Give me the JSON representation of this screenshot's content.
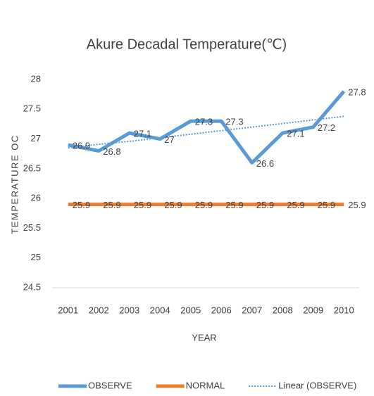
{
  "chart_data": {
    "type": "line",
    "title": "Akure Decadal Temperature(℃)",
    "x_label": "YEAR",
    "y_label": "TEMPERATURE OC",
    "categories": [
      "2001",
      "2002",
      "2003",
      "2004",
      "2005",
      "2006",
      "2007",
      "2008",
      "2009",
      "2010"
    ],
    "series": [
      {
        "name": "OBSERVE",
        "color": "#5b9bd5",
        "style": "solid",
        "data_labels": true,
        "values": [
          26.9,
          26.8,
          27.1,
          27,
          27.3,
          27.3,
          26.6,
          27.1,
          27.2,
          27.8
        ]
      },
      {
        "name": "NORMAL",
        "color": "#ed7d31",
        "style": "solid",
        "data_labels": true,
        "values": [
          25.9,
          25.9,
          25.9,
          25.9,
          25.9,
          25.9,
          25.9,
          25.9,
          25.9,
          25.9
        ]
      },
      {
        "name": "Linear (OBSERVE)",
        "color": "#5b9bd5",
        "style": "dotted",
        "data_labels": false,
        "values": [
          26.85,
          26.91,
          26.96,
          27.02,
          27.08,
          27.14,
          27.2,
          27.26,
          27.32,
          27.38
        ]
      }
    ],
    "ylim": [
      24.5,
      28
    ],
    "yticks": [
      24.5,
      25,
      25.5,
      26,
      26.5,
      27,
      27.5,
      28
    ],
    "grid": false,
    "legend": "bottom"
  }
}
